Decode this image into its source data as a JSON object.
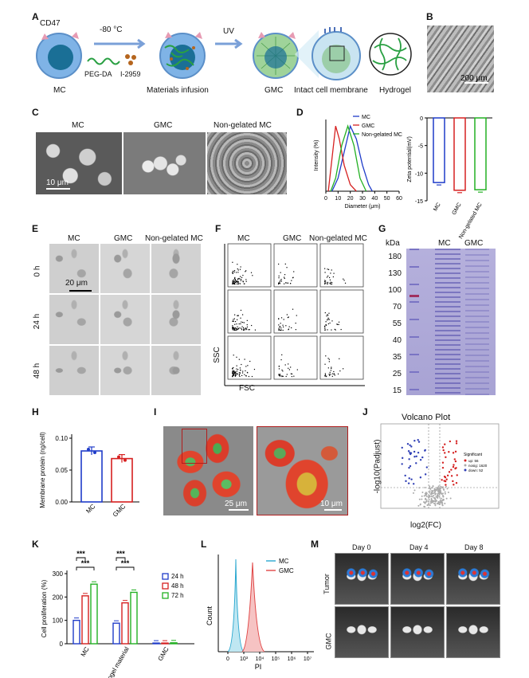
{
  "panels": {
    "A": {
      "letter": "A",
      "labels": {
        "cd47": "CD47",
        "temp": "-80 °C",
        "pegda": "PEG-DA",
        "i2959": "I-2959",
        "mc": "MC",
        "infusion": "Materials infusion",
        "uv": "UV",
        "gmc": "GMC",
        "membrane": "Intact cell membrane",
        "hydrogel": "Hydrogel"
      }
    },
    "B": {
      "letter": "B",
      "scale": "200 μm"
    },
    "C": {
      "letter": "C",
      "cols": [
        "MC",
        "GMC",
        "Non-gelated MC"
      ],
      "scale": "10 μm"
    },
    "D": {
      "letter": "D",
      "legend": [
        "MC",
        "GMC",
        "Non-gelated MC"
      ],
      "ylabel_left": "Intensity (%)",
      "xlabel_left": "Diameter (μm)",
      "ylabel_right": "Zeta potential(mV)",
      "xticks": [
        "0",
        "10",
        "20",
        "30",
        "40",
        "50",
        "60"
      ],
      "yticks_right": [
        "0",
        "-5",
        "-10",
        "-15"
      ],
      "categories_right": [
        "MC",
        "GMC",
        "Non-gelated MC"
      ]
    },
    "E": {
      "letter": "E",
      "cols": [
        "MC",
        "GMC",
        "Non-gelated MC"
      ],
      "rows": [
        "0 h",
        "24 h",
        "48 h"
      ],
      "scale": "20 μm"
    },
    "F": {
      "letter": "F",
      "cols": [
        "MC",
        "GMC",
        "Non-gelated MC"
      ],
      "ylabel": "SSC",
      "xlabel": "FSC"
    },
    "G": {
      "letter": "G",
      "unit": "kDa",
      "cols": [
        "MC",
        "GMC"
      ],
      "markers": [
        "180",
        "130",
        "100",
        "70",
        "55",
        "40",
        "35",
        "25",
        "15"
      ]
    },
    "H": {
      "letter": "H",
      "ylabel": "Membrane protein (ng/cell)",
      "yticks": [
        "0.00",
        "0.05",
        "0.10"
      ],
      "categories": [
        "MC",
        "GMC"
      ]
    },
    "I": {
      "letter": "I",
      "scale_left": "25 μm",
      "scale_right": "10 μm"
    },
    "J": {
      "letter": "J",
      "title": "Volcano Plot",
      "ylabel": "-log10(Padjust)",
      "xlabel": "log2(FC)",
      "legend_title": "Significant",
      "legend": [
        "up: 56",
        "nosig: 1620",
        "down: 52"
      ]
    },
    "K": {
      "letter": "K",
      "ylabel": "Cell proliferation (%)",
      "yticks": [
        "0",
        "100",
        "200",
        "300"
      ],
      "legend": [
        "24 h",
        "48 h",
        "72 h"
      ],
      "categories": [
        "MC",
        "Hydrogel material",
        "GMC"
      ],
      "sig": "***"
    },
    "L": {
      "letter": "L",
      "ylabel": "Count",
      "xlabel": "PI",
      "legend": [
        "MC",
        "GMC"
      ],
      "xticks": [
        "0",
        "10³",
        "10⁴",
        "10⁵",
        "10⁶",
        "10⁷"
      ]
    },
    "M": {
      "letter": "M",
      "cols": [
        "Day 0",
        "Day 4",
        "Day 8"
      ],
      "rows": [
        "Tumor",
        "GMC"
      ]
    }
  },
  "chart_data": [
    {
      "type": "line",
      "panel": "D-left",
      "xlabel": "Diameter (μm)",
      "ylabel": "Intensity (%)",
      "xlim": [
        0,
        60
      ],
      "series": [
        {
          "name": "MC",
          "color": "#1f3cc9",
          "x": [
            5,
            10,
            15,
            20,
            25,
            30,
            35,
            38
          ],
          "y": [
            0,
            2,
            6,
            10,
            8,
            4,
            1,
            0
          ]
        },
        {
          "name": "GMC",
          "color": "#d62020",
          "x": [
            2,
            5,
            8,
            11,
            15,
            20,
            25
          ],
          "y": [
            0,
            5,
            10,
            8,
            4,
            1,
            0
          ]
        },
        {
          "name": "Non-gelated MC",
          "color": "#22b022",
          "x": [
            4,
            8,
            13,
            18,
            23,
            28,
            33
          ],
          "y": [
            0,
            2,
            7,
            10,
            7,
            2,
            0
          ]
        }
      ]
    },
    {
      "type": "bar",
      "panel": "D-right",
      "ylabel": "Zeta potential(mV)",
      "ylim": [
        -15,
        0
      ],
      "categories": [
        "MC",
        "GMC",
        "Non-gelated MC"
      ],
      "values": [
        -11.7,
        -13.1,
        -13.0
      ],
      "colors": [
        "#1f3cc9",
        "#d62020",
        "#22b022"
      ]
    },
    {
      "type": "bar",
      "panel": "H",
      "ylabel": "Membrane protein (ng/cell)",
      "ylim": [
        0,
        0.1
      ],
      "categories": [
        "MC",
        "GMC"
      ],
      "values": [
        0.08,
        0.068
      ],
      "colors": [
        "#1f3cc9",
        "#d62020"
      ]
    },
    {
      "type": "bar",
      "panel": "K",
      "ylabel": "Cell proliferation (%)",
      "ylim": [
        0,
        300
      ],
      "categories": [
        "MC",
        "Hydrogel material",
        "GMC"
      ],
      "series": [
        {
          "name": "24 h",
          "color": "#1f3cc9",
          "values": [
            100,
            88,
            3
          ]
        },
        {
          "name": "48 h",
          "color": "#d62020",
          "values": [
            205,
            175,
            3
          ]
        },
        {
          "name": "72 h",
          "color": "#22b022",
          "values": [
            255,
            220,
            4
          ]
        }
      ]
    }
  ]
}
